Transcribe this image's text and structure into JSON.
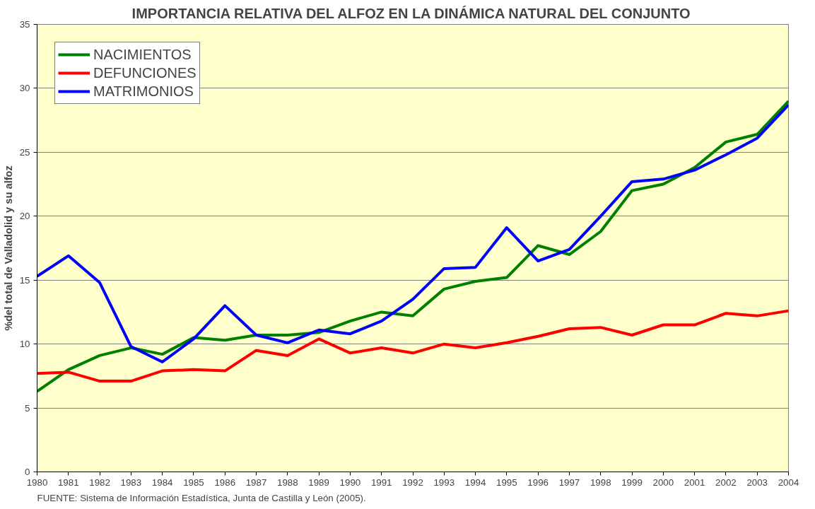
{
  "chart_data": {
    "type": "line",
    "title": "IMPORTANCIA RELATIVA DEL ALFOZ EN LA DINÁMICA NATURAL DEL CONJUNTO",
    "ylabel": "%del total de Valladolid y su alfoz",
    "x": [
      1980,
      1981,
      1982,
      1983,
      1984,
      1985,
      1986,
      1987,
      1988,
      1989,
      1990,
      1991,
      1992,
      1993,
      1994,
      1995,
      1996,
      1997,
      1998,
      1999,
      2000,
      2001,
      2002,
      2003,
      2004
    ],
    "series": [
      {
        "name": "NACIMIENTOS",
        "color": "#008000",
        "values": [
          6.3,
          8.0,
          9.1,
          9.7,
          9.2,
          10.5,
          10.3,
          10.7,
          10.7,
          10.9,
          11.8,
          12.5,
          12.2,
          14.3,
          14.9,
          15.2,
          17.7,
          17.0,
          18.8,
          22.0,
          22.5,
          23.8,
          25.8,
          26.4,
          29.0
        ]
      },
      {
        "name": "DEFUNCIONES",
        "color": "#ff0000",
        "values": [
          7.7,
          7.8,
          7.1,
          7.1,
          7.9,
          8.0,
          7.9,
          9.5,
          9.1,
          10.4,
          9.3,
          9.7,
          9.3,
          10.0,
          9.7,
          10.1,
          10.6,
          11.2,
          11.3,
          10.7,
          11.5,
          11.5,
          12.4,
          12.2,
          12.6
        ]
      },
      {
        "name": "MATRIMONIOS",
        "color": "#0000ff",
        "values": [
          15.3,
          16.9,
          14.8,
          9.8,
          8.6,
          10.4,
          13.0,
          10.7,
          10.1,
          11.1,
          10.8,
          11.8,
          13.5,
          15.9,
          16.0,
          19.1,
          16.5,
          17.4,
          20.0,
          22.7,
          22.9,
          23.6,
          24.8,
          26.1,
          28.7
        ]
      }
    ],
    "xlim": [
      1980,
      2004
    ],
    "xticks": [
      1980,
      1981,
      1982,
      1983,
      1984,
      1985,
      1986,
      1987,
      1988,
      1989,
      1990,
      1991,
      1992,
      1993,
      1994,
      1995,
      1996,
      1997,
      1998,
      1999,
      2000,
      2001,
      2002,
      2003,
      2004
    ],
    "ylim": [
      0,
      35
    ],
    "yticks": [
      0,
      5,
      10,
      15,
      20,
      25,
      30,
      35
    ],
    "grid": "y",
    "legend": "top left",
    "marker": "none",
    "line_style": "solid",
    "annotations": [
      "FUENTE: Sistema de Información Estadística, Junta de Castilla y León (2005)."
    ]
  }
}
